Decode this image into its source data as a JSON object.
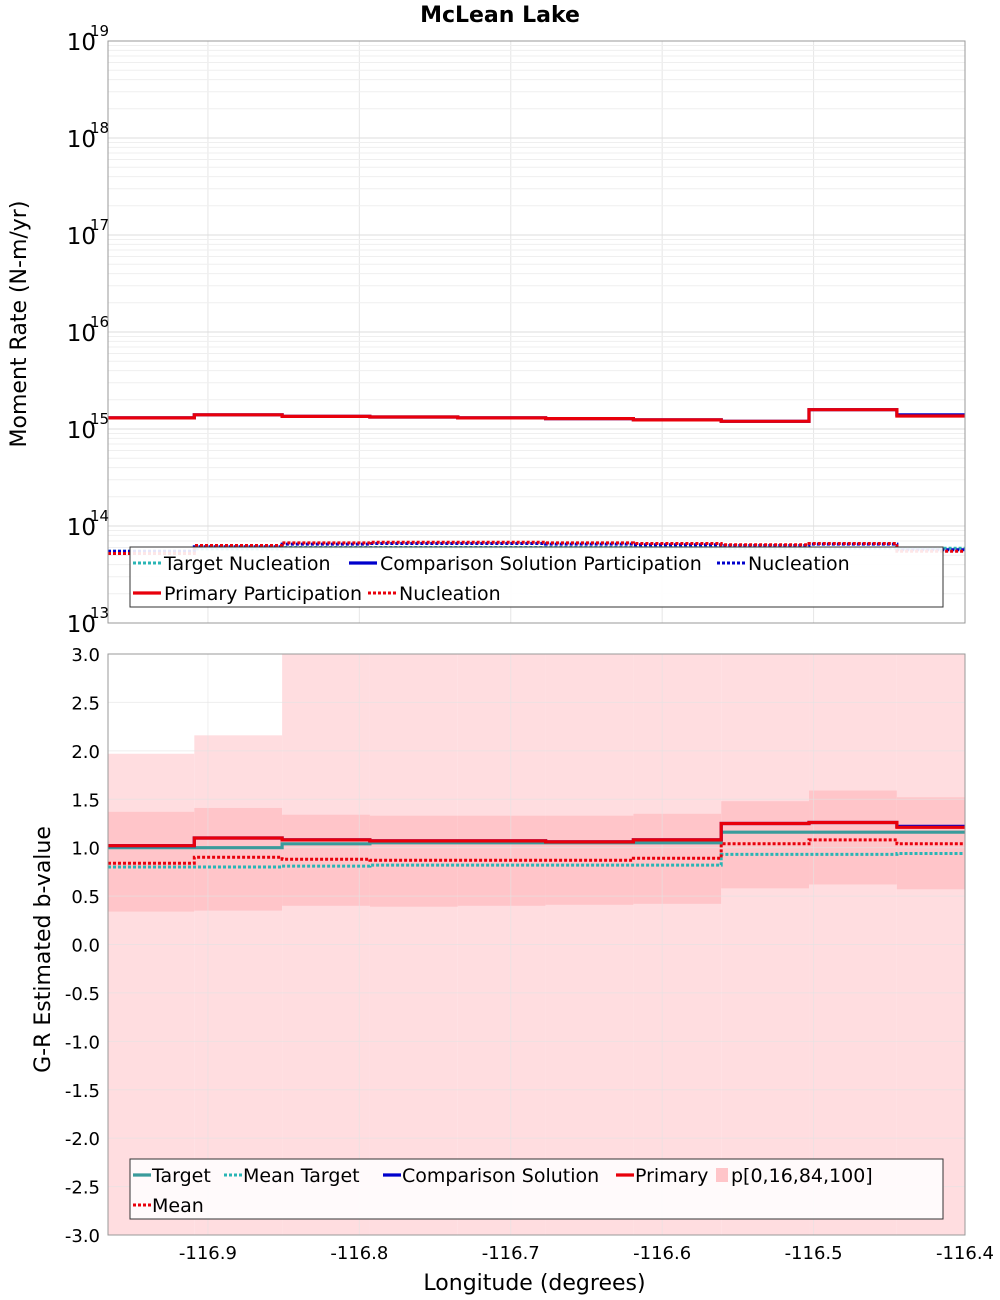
{
  "title": "McLean Lake",
  "xlabel": "Longitude (degrees)",
  "colors": {
    "target": "#3a9b9b",
    "mean_target": "#2ab5b5",
    "comparison": "#0000cc",
    "primary": "#e8000b",
    "band_outer": "#ffdde0",
    "band_inner": "#ffc5c9"
  },
  "chart_data": [
    {
      "type": "line",
      "panel": "top",
      "ylabel": "Moment Rate (N-m/yr)",
      "yscale": "log",
      "ylim": [
        10000000000000.0,
        1e+19
      ],
      "xlim": [
        -116.966,
        -116.4
      ],
      "yticks_exponents": [
        13,
        14,
        15,
        16,
        17,
        18,
        19
      ],
      "grid": true,
      "legend_position": "bottom",
      "x_edges": [
        -116.966,
        -116.909,
        -116.851,
        -116.793,
        -116.735,
        -116.677,
        -116.619,
        -116.561,
        -116.503,
        -116.445,
        -116.4
      ],
      "series": [
        {
          "name": "Target Nucleation",
          "style": "dotted",
          "color_key": "mean_target",
          "values": [
            55000000000000.0,
            58000000000000.0,
            60000000000000.0,
            60000000000000.0,
            60000000000000.0,
            60000000000000.0,
            60000000000000.0,
            59000000000000.0,
            59000000000000.0,
            59000000000000.0
          ]
        },
        {
          "name": "Comparison Solution Participation",
          "style": "solid",
          "color_key": "comparison",
          "values": [
            1300000000000000.0,
            1400000000000000.0,
            1350000000000000.0,
            1330000000000000.0,
            1300000000000000.0,
            1280000000000000.0,
            1240000000000000.0,
            1200000000000000.0,
            1580000000000000.0,
            1400000000000000.0
          ]
        },
        {
          "name": "Nucleation",
          "style": "dotted",
          "color_key": "comparison",
          "values": [
            55000000000000.0,
            61000000000000.0,
            65000000000000.0,
            66000000000000.0,
            66000000000000.0,
            65000000000000.0,
            64000000000000.0,
            63000000000000.0,
            65000000000000.0,
            57000000000000.0
          ]
        },
        {
          "name": "Primary Participation",
          "style": "solid",
          "color_key": "primary",
          "values": [
            1300000000000000.0,
            1400000000000000.0,
            1350000000000000.0,
            1330000000000000.0,
            1300000000000000.0,
            1280000000000000.0,
            1240000000000000.0,
            1200000000000000.0,
            1580000000000000.0,
            1360000000000000.0
          ]
        },
        {
          "name": "Nucleation",
          "style": "dotted",
          "color_key": "primary",
          "values": [
            52000000000000.0,
            63000000000000.0,
            67000000000000.0,
            68000000000000.0,
            68000000000000.0,
            67000000000000.0,
            66000000000000.0,
            64000000000000.0,
            66000000000000.0,
            55000000000000.0
          ]
        }
      ]
    },
    {
      "type": "line",
      "panel": "bottom",
      "ylabel": "G-R Estimated b-value",
      "yscale": "linear",
      "ylim": [
        -3.0,
        3.0
      ],
      "xlim": [
        -116.966,
        -116.4
      ],
      "xticks": [
        -116.9,
        -116.8,
        -116.7,
        -116.6,
        -116.5,
        -116.4
      ],
      "xtick_labels": [
        "-116.9",
        "-116.8",
        "-116.7",
        "-116.6",
        "-116.5",
        "-116.4"
      ],
      "yticks": [
        3.0,
        2.5,
        2.0,
        1.5,
        1.0,
        0.5,
        0.0,
        -0.5,
        -1.0,
        -1.5,
        -2.0,
        -2.5,
        -3.0
      ],
      "ytick_labels": [
        "3.0",
        "2.5",
        "2.0",
        "1.5",
        "1.0",
        "0.5",
        "0.0",
        "-0.5",
        "-1.0",
        "-1.5",
        "-2.0",
        "-2.5",
        "-3.0"
      ],
      "grid": true,
      "legend_position": "bottom",
      "x_edges": [
        -116.966,
        -116.909,
        -116.851,
        -116.793,
        -116.735,
        -116.677,
        -116.619,
        -116.561,
        -116.503,
        -116.445,
        -116.4
      ],
      "band": {
        "name": "p[0,16,84,100]",
        "p0": [
          -3.0,
          -3.0,
          -3.0,
          -3.0,
          -3.0,
          -3.0,
          -3.0,
          -3.0,
          -3.0,
          -3.0
        ],
        "p16": [
          0.34,
          0.35,
          0.4,
          0.39,
          0.4,
          0.41,
          0.42,
          0.58,
          0.62,
          0.57
        ],
        "p84": [
          1.37,
          1.41,
          1.34,
          1.33,
          1.33,
          1.33,
          1.35,
          1.48,
          1.59,
          1.52
        ],
        "p100": [
          1.97,
          2.16,
          3.0,
          3.0,
          3.0,
          3.0,
          3.0,
          3.0,
          3.0,
          3.0
        ]
      },
      "series": [
        {
          "name": "Target",
          "style": "solid",
          "color_key": "target",
          "values": [
            1.0,
            1.0,
            1.04,
            1.05,
            1.05,
            1.05,
            1.05,
            1.16,
            1.16,
            1.16
          ]
        },
        {
          "name": "Mean Target",
          "style": "dotted",
          "color_key": "mean_target",
          "values": [
            0.8,
            0.8,
            0.81,
            0.82,
            0.82,
            0.82,
            0.82,
            0.93,
            0.93,
            0.94
          ]
        },
        {
          "name": "Comparison Solution",
          "style": "solid",
          "color_key": "comparison",
          "values": [
            1.02,
            1.1,
            1.08,
            1.07,
            1.07,
            1.06,
            1.08,
            1.25,
            1.26,
            1.22
          ]
        },
        {
          "name": "Primary",
          "style": "solid",
          "color_key": "primary",
          "values": [
            1.02,
            1.1,
            1.08,
            1.07,
            1.07,
            1.06,
            1.08,
            1.25,
            1.26,
            1.21
          ]
        },
        {
          "name": "Mean",
          "style": "dotted",
          "color_key": "primary",
          "values": [
            0.84,
            0.9,
            0.88,
            0.87,
            0.87,
            0.87,
            0.89,
            1.04,
            1.08,
            1.04
          ]
        }
      ]
    }
  ]
}
